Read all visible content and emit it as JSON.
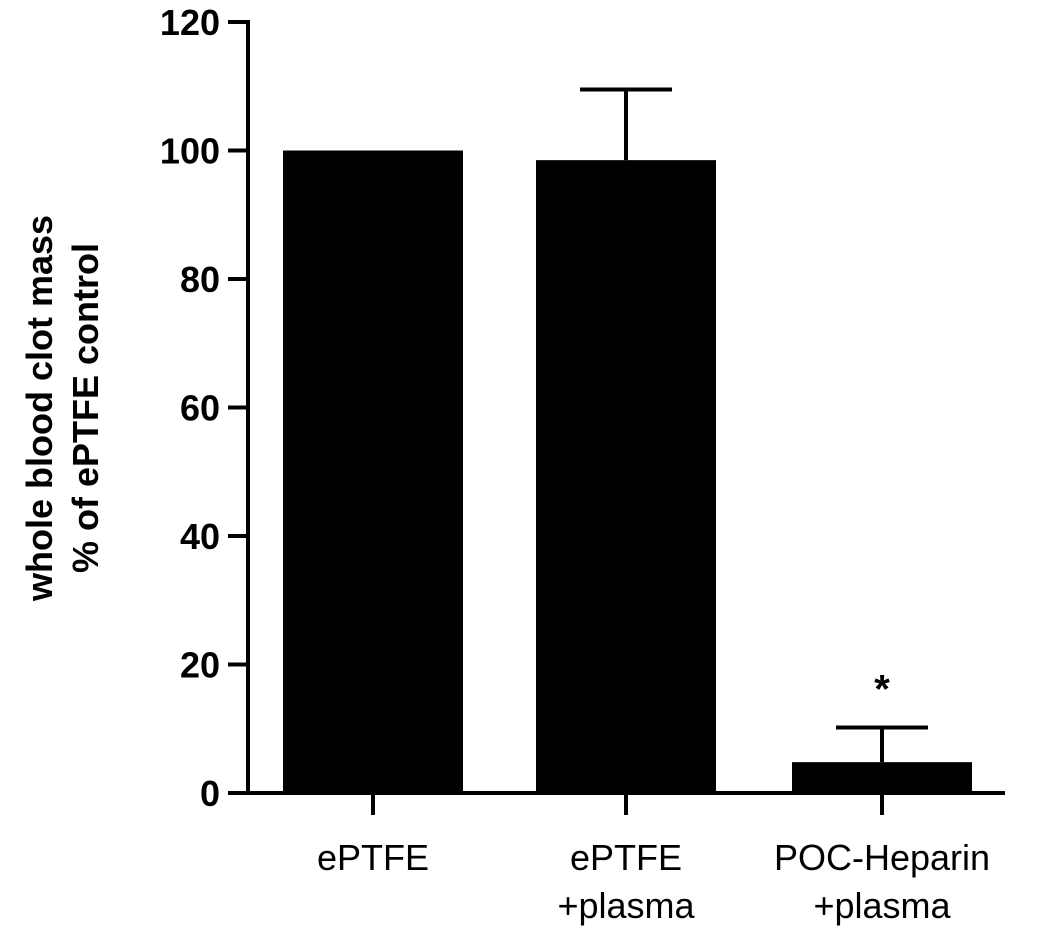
{
  "chart_data": {
    "type": "bar",
    "title": "",
    "ylabel_lines": [
      "whole blood clot mass",
      "% of ePTFE control"
    ],
    "xlabel": "",
    "categories": [
      {
        "lines": [
          "ePTFE"
        ]
      },
      {
        "lines": [
          "ePTFE",
          "+plasma"
        ]
      },
      {
        "lines": [
          "POC-Heparin",
          "+plasma"
        ]
      }
    ],
    "values": [
      100,
      98.5,
      4.8
    ],
    "error_upper": [
      null,
      109.5,
      10.2
    ],
    "annotations": [
      "",
      "",
      "*"
    ],
    "ylim": [
      0,
      120
    ],
    "yticks": [
      0,
      20,
      40,
      60,
      80,
      100,
      120
    ],
    "grid": false,
    "bar_color": "#000000"
  }
}
